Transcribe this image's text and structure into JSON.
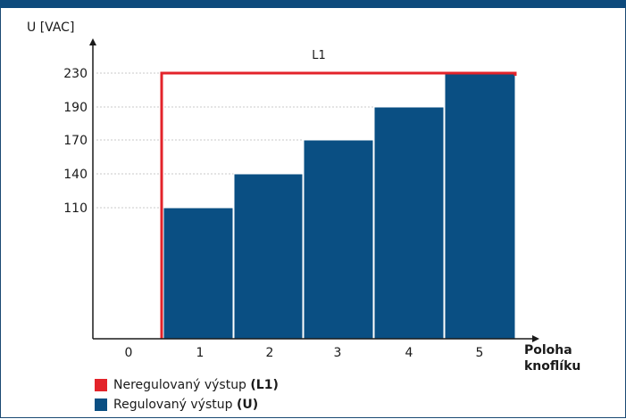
{
  "colors": {
    "header": "#0d4a7c",
    "bars": "#0a4f83",
    "line": "#e3232a",
    "grid": "#c8c8c8",
    "axis": "#1a1a1a"
  },
  "chart_data": {
    "type": "bar",
    "ylabel": "U [VAC]",
    "xlabel": [
      "Poloha",
      "knoflíku"
    ],
    "categories": [
      "0",
      "1",
      "2",
      "3",
      "4",
      "5"
    ],
    "y_ticks": [
      "230",
      "190",
      "170",
      "140",
      "110"
    ],
    "y_tick_values": [
      230,
      190,
      170,
      140,
      110
    ],
    "ylim": [
      0,
      260
    ],
    "series": [
      {
        "name": "Regulovaný výstup (U)",
        "values": [
          0,
          110,
          140,
          170,
          190,
          230
        ]
      },
      {
        "name": "Neregulovaný výstup (L1)",
        "values": [
          0,
          230,
          230,
          230,
          230,
          230
        ]
      }
    ],
    "line_label": "L1",
    "grid": "horizontal dotted",
    "legend_placement": "bottom-left"
  },
  "legend": {
    "items": [
      {
        "text": "Neregulovaný výstup ",
        "bold": "(L1)",
        "color": "#e3232a"
      },
      {
        "text": "Regulovaný výstup ",
        "bold": "(U)",
        "color": "#0a4f83"
      }
    ]
  }
}
